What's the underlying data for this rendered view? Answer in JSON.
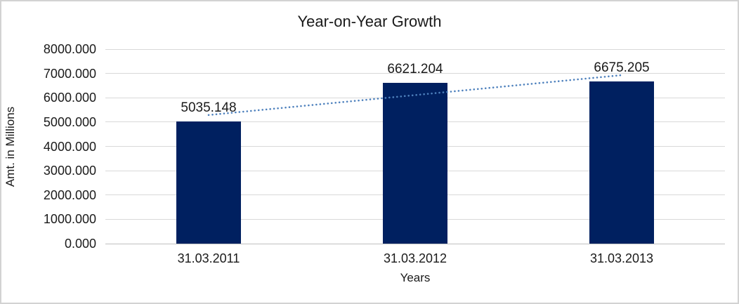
{
  "chart_data": {
    "type": "bar",
    "title": "Year-on-Year Growth",
    "xlabel": "Years",
    "ylabel": "Amt. in Millions",
    "categories": [
      "31.03.2011",
      "31.03.2012",
      "31.03.2013"
    ],
    "values": [
      5035.148,
      6621.204,
      6675.205
    ],
    "data_labels": [
      "5035.148",
      "6621.204",
      "6675.205"
    ],
    "ylim": [
      0,
      8000
    ],
    "ytick_labels": [
      "0.000",
      "1000.000",
      "2000.000",
      "3000.000",
      "4000.000",
      "5000.000",
      "6000.000",
      "7000.000",
      "8000.000"
    ],
    "grid": true,
    "legend": "none",
    "trendline": {
      "type": "linear",
      "style": "dotted"
    },
    "colors": {
      "bar": "#002060",
      "trendline": "#4e81bd",
      "gridline": "#d9d9d9",
      "axis_line": "#c0c0c0",
      "text": "#1a1a1a",
      "frame_border": "#d2d2d2",
      "background": "#ffffff"
    }
  }
}
